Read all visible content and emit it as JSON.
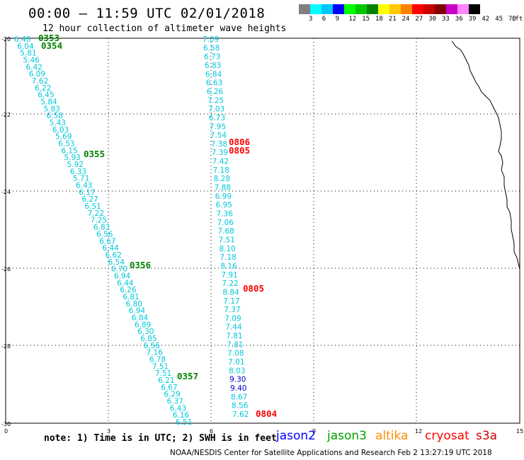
{
  "title": "00:00 – 11:59 UTC 02/01/2018",
  "subtitle": "12 hour collection of altimeter wave heights",
  "colorbar": {
    "unit": "(ft)",
    "labels": [
      "3",
      "6",
      "9",
      "12",
      "15",
      "18",
      "21",
      "24",
      "27",
      "30",
      "33",
      "36",
      "39",
      "42",
      "45",
      "70"
    ],
    "colors": [
      "#808080",
      "#00ffff",
      "#00c8ff",
      "#0000ff",
      "#00ff00",
      "#00c800",
      "#008200",
      "#ffff00",
      "#ffc800",
      "#ff8200",
      "#ff0000",
      "#c80000",
      "#820000",
      "#c800c8",
      "#ff82ff",
      "#000000"
    ]
  },
  "axes": {
    "x_ticks": [
      "0",
      "3",
      "6",
      "9",
      "12",
      "15"
    ],
    "y_ticks": [
      "-20",
      "-22",
      "-24",
      "-26",
      "-28",
      "-30"
    ]
  },
  "note": "note: 1) Time is in UTC; 2) SWH is in feet",
  "legend": [
    {
      "label": "jason2",
      "color": "#0000ff"
    },
    {
      "label": "jason3",
      "color": "#00a000"
    },
    {
      "label": "altika",
      "color": "#ff8c00"
    },
    {
      "label": "cryosat",
      "color": "#ff0000"
    },
    {
      "label": "s3a",
      "color": "#cc0000"
    }
  ],
  "footer": "NOAA/NESDIS Center for Satellite Applications and Research    Feb  2 13:27:19 UTC 2018",
  "map_data": {
    "track_left": {
      "color": "#00c8dc",
      "values": [
        "6.48",
        "6.04",
        "5.81",
        "5.46",
        "6.42",
        "6.09",
        "7.62",
        "6.22",
        "6.45",
        "5.84",
        "5.83",
        "6.58",
        "5.43",
        "6.03",
        "5.69",
        "6.53",
        "6.15",
        "5.93",
        "5.92",
        "6.33",
        "5.71",
        "6.43",
        "6.17",
        "6.27",
        "6.51",
        "7.22",
        "7.25",
        "6.83",
        "6.56",
        "6.67",
        "6.44",
        "6.62",
        "6.54",
        "6.70",
        "6.94",
        "6.44",
        "6.26",
        "6.81",
        "6.80",
        "6.94",
        "6.84",
        "6.89",
        "6.30",
        "6.85",
        "6.56",
        "7.16",
        "6.78",
        "7.51",
        "7.51",
        "6.21",
        "6.67",
        "6.29",
        "6.37",
        "6.43",
        "6.16",
        "6.51"
      ],
      "passes": [
        {
          "time": "0353",
          "color": "#008200"
        },
        {
          "time": "0354",
          "color": "#008200"
        },
        {
          "time": "0355",
          "color": "#008200"
        },
        {
          "time": "0356",
          "color": "#008200"
        },
        {
          "time": "0357",
          "color": "#008200"
        }
      ]
    },
    "track_right": {
      "values": [
        "7.09",
        "6.58",
        "6.73",
        "6.83",
        "6.84",
        "6.63",
        "6.26",
        "7.25",
        "7.03",
        "6.73",
        "7.95",
        "7.54",
        "7.38",
        "7.39",
        "7.42",
        "7.18",
        "8.28",
        "7.88",
        "6.99",
        "6.95",
        "7.36",
        "7.06",
        "7.68",
        "7.51",
        "8.10",
        "7.18",
        "8.16",
        "7.91",
        "7.22",
        "8.84",
        "7.17",
        "7.37",
        "7.09",
        "7.44",
        "7.81",
        "7.81",
        "7.08",
        "7.01",
        "8.03",
        "9.30",
        "9.40",
        "8.67",
        "8.56",
        "7.62"
      ],
      "passes": [
        {
          "time": "0806",
          "color": "#ff0000"
        },
        {
          "time": "0805",
          "color": "#ff0000"
        },
        {
          "time": "0805",
          "color": "#ff0000"
        },
        {
          "time": "0804",
          "color": "#ff0000"
        }
      ]
    }
  }
}
